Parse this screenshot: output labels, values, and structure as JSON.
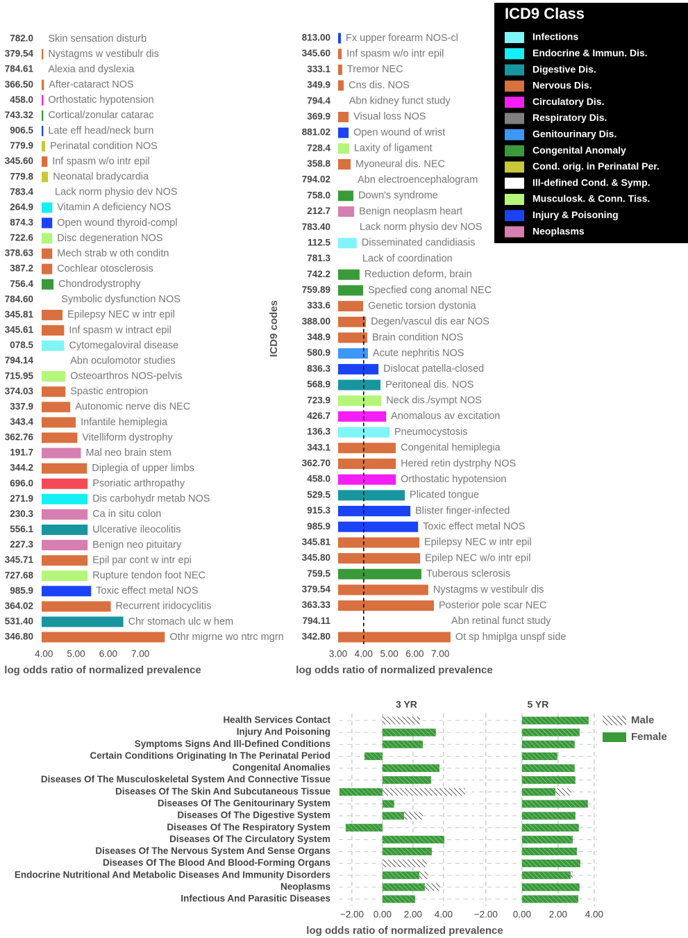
{
  "legend": {
    "title": "ICD9 Class",
    "items": [
      {
        "name": "Infections",
        "color": "#80f5f8"
      },
      {
        "name": "Endocrine & Immun. Dis.",
        "color": "#14f0f5"
      },
      {
        "name": "Digestive Dis.",
        "color": "#17969f"
      },
      {
        "name": "Nervous Dis.",
        "color": "#d9703f"
      },
      {
        "name": "Circulatory Dis.",
        "color": "#f51ef5"
      },
      {
        "name": "Respiratory Dis.",
        "color": "#808080"
      },
      {
        "name": "Genitourinary Dis.",
        "color": "#3d97f5"
      },
      {
        "name": "Congenital Anomaly",
        "color": "#3a9a3a"
      },
      {
        "name": "Cond. orig. in Perinatal Per.",
        "color": "#c8c83a"
      },
      {
        "name": "Ill-defined Cond. & Symp.",
        "color": "#ffffff"
      },
      {
        "name": "Musculosk. & Conn. Tiss.",
        "color": "#b5f57a"
      },
      {
        "name": "Injury & Poisoning",
        "color": "#1a43f5"
      },
      {
        "name": "Neoplasms",
        "color": "#d77fb0"
      }
    ]
  },
  "chart_data": [
    {
      "type": "hbar",
      "xlabel": "log odds ratio of normalized prevalence",
      "codes": [
        "782.0",
        "379.54",
        "784.61",
        "366.50",
        "458.0",
        "743.32",
        "906.5",
        "779.9",
        "345.60",
        "779.8",
        "783.4",
        "264.9",
        "874.3",
        "722.6",
        "378.63",
        "387.2",
        "756.4",
        "784.60",
        "345.81",
        "345.61",
        "078.5",
        "794.14",
        "715.95",
        "374.03",
        "337.9",
        "343.4",
        "362.76",
        "191.7",
        "344.2",
        "696.0",
        "271.9",
        "230.3",
        "556.1",
        "227.3",
        "345.71",
        "727.68",
        "985.9",
        "364.02",
        "531.40",
        "346.80"
      ],
      "categories": [
        "Skin sensation disturb",
        "Nystagms w vestibulr dis",
        "Alexia and dyslexia",
        "After-cataract NOS",
        "Orthostatic hypotension",
        "Cortical/zonular catarac",
        "Late eff head/neck burn",
        "Perinatal condition NOS",
        "Inf spasm w/o intr epil",
        "Neonatal bradycardia",
        "Lack norm physio dev NOS",
        "Vitamin A deficiency NOS",
        "Open wound thyroid-compl",
        "Disc degeneration NOS",
        "Mech strab w oth conditn",
        "Cochlear otosclerosis",
        "Chondrodystrophy",
        "Symbolic dysfunction NOS",
        "Epilepsy NEC w intr epil",
        "Inf spasm w intract epil",
        "Cytomegaloviral disease",
        "Abn oculomotor studies",
        "Osteoarthros NOS-pelvis",
        "Spastic entropion",
        "Autonomic nerve dis NEC",
        "Infantile hemiplegia",
        "Vitelliform dystrophy",
        "Mal neo brain stem",
        "Diplegia of upper limbs",
        "Psoriatic arthropathy",
        "Dis carbohydr metab NOS",
        "Ca in situ colon",
        "Ulcerative ileocolitis",
        "Benign neo pituitary",
        "Epil par cont w intr epi",
        "Rupture tendon foot NEC",
        "Toxic effect metal NOS",
        "Recurrent iridocyclitis",
        "Chr stomach ulc w hem",
        "Othr migrne wo ntrc mgrn"
      ],
      "values": [
        3.98,
        3.98,
        3.98,
        4.0,
        3.98,
        3.98,
        3.98,
        4.04,
        4.11,
        4.13,
        4.19,
        4.26,
        4.26,
        4.26,
        4.26,
        4.26,
        4.3,
        4.39,
        4.58,
        4.63,
        4.63,
        4.67,
        4.67,
        4.67,
        4.82,
        4.99,
        5.04,
        5.15,
        5.34,
        5.36,
        5.36,
        5.36,
        5.36,
        5.36,
        5.36,
        5.36,
        5.47,
        6.08,
        6.47,
        7.76
      ],
      "colors": [
        "#ffffff",
        "#d9703f",
        "#ffffff",
        "#d9703f",
        "#f51ef5",
        "#3a9a3a",
        "#1a43f5",
        "#c8c83a",
        "#d9703f",
        "#c8c83a",
        "#ffffff",
        "#14f0f5",
        "#1a43f5",
        "#b5f57a",
        "#d9703f",
        "#d9703f",
        "#3a9a3a",
        "#ffffff",
        "#d9703f",
        "#d9703f",
        "#80f5f8",
        "#ffffff",
        "#b5f57a",
        "#d9703f",
        "#d9703f",
        "#d9703f",
        "#d9703f",
        "#d77fb0",
        "#d9703f",
        "#f54a55",
        "#14f0f5",
        "#d77fb0",
        "#17969f",
        "#d77fb0",
        "#d9703f",
        "#b5f57a",
        "#1a43f5",
        "#d9703f",
        "#17969f",
        "#d9703f"
      ],
      "xlim": [
        3.93,
        8.5
      ],
      "xticks": [
        {
          "value": 4,
          "label": "4.00"
        },
        {
          "value": 5,
          "label": "5.00"
        },
        {
          "value": 6,
          "label": "6.00"
        },
        {
          "value": 7,
          "label": "7.00"
        }
      ]
    },
    {
      "type": "hbar",
      "xlabel": "log odds ratio of normalized prevalence",
      "ylabel": "ICD9 codes",
      "reference_line": 4,
      "codes": [
        "813.00",
        "345.60",
        "333.1",
        "349.9",
        "794.4",
        "369.9",
        "881.02",
        "728.4",
        "358.8",
        "794.02",
        "758.0",
        "212.7",
        "783.40",
        "112.5",
        "781.3",
        "742.2",
        "759.89",
        "333.6",
        "388.00",
        "348.9",
        "580.9",
        "836.3",
        "568.9",
        "723.9",
        "426.7",
        "136.3",
        "343.1",
        "362.70",
        "458.0",
        "529.5",
        "915.3",
        "985.9",
        "345.81",
        "345.80",
        "759.5",
        "379.54",
        "363.33",
        "794.11",
        "342.80"
      ],
      "categories": [
        "Fx upper forearm NOS-cl",
        "Inf spasm w/o intr epil",
        "Tremor NEC",
        "Cns dis.  NOS",
        "Abn kidney funct study",
        "Visual loss NOS",
        "Open wound of wrist",
        "Laxity of ligament",
        "Myoneural dis.  NEC",
        "Abn electroencephalogram",
        "Down's syndrome",
        "Benign neoplasm heart",
        "Lack norm physio dev NOS",
        "Disseminated candidiasis",
        "Lack of coordination",
        "Reduction deform, brain",
        "Specfied cong anomal NEC",
        "Genetic torsion dystonia",
        "Degen/vascul dis ear NOS",
        "Brain condition NOS",
        "Acute nephritis NOS",
        "Dislocat patella-closed",
        "Peritoneal dis.  NOS",
        "Neck dis./sympt NOS",
        "Anomalous av excitation",
        "Pneumocystosis",
        "Congenital hemiplegia",
        "Hered retin dystrphy NOS",
        "Orthostatic hypotension",
        "Plicated tongue",
        "Blister finger-infected",
        "Toxic effect metal NOS",
        "Epilepsy NEC w intr epil",
        "Epilep NEC w/o intr epil",
        "Tuberous sclerosis",
        "Nystagms w vestibulr dis",
        "Posterior pole scar NEC",
        "Abn retinal funct study",
        "Ot sp hmiplga unspf side"
      ],
      "values": [
        3.11,
        3.14,
        3.16,
        3.22,
        3.24,
        3.41,
        3.41,
        3.43,
        3.49,
        3.57,
        3.6,
        3.63,
        3.65,
        3.73,
        3.76,
        3.84,
        3.98,
        3.98,
        4.09,
        4.14,
        4.17,
        4.58,
        4.66,
        4.69,
        4.88,
        5.01,
        5.26,
        5.26,
        5.26,
        5.61,
        5.83,
        6.13,
        6.18,
        6.21,
        6.26,
        6.53,
        6.75,
        7.24,
        7.4
      ],
      "colors": [
        "#1a43f5",
        "#d9703f",
        "#d9703f",
        "#d9703f",
        "#ffffff",
        "#d9703f",
        "#1a43f5",
        "#b5f57a",
        "#d9703f",
        "#ffffff",
        "#3a9a3a",
        "#d77fb0",
        "#ffffff",
        "#80f5f8",
        "#ffffff",
        "#3a9a3a",
        "#3a9a3a",
        "#d9703f",
        "#d9703f",
        "#d9703f",
        "#3d97f5",
        "#1a43f5",
        "#17969f",
        "#b5f57a",
        "#f51ef5",
        "#80f5f8",
        "#d9703f",
        "#d9703f",
        "#f51ef5",
        "#17969f",
        "#1a43f5",
        "#1a43f5",
        "#d9703f",
        "#d9703f",
        "#3a9a3a",
        "#d9703f",
        "#d9703f",
        "#ffffff",
        "#d9703f"
      ],
      "xlim": [
        3.0,
        7.5
      ],
      "xticks": [
        {
          "value": 3,
          "label": "3.00"
        },
        {
          "value": 4,
          "label": "4.00"
        },
        {
          "value": 5,
          "label": "5.00"
        },
        {
          "value": 6,
          "label": "6.00"
        },
        {
          "value": 7,
          "label": "7.00"
        }
      ]
    },
    {
      "type": "faceted_hbar",
      "xlabel": "log odds ratio of normalized prevalence",
      "categories": [
        "Health Services Contact",
        "Injury And Poisoning",
        "Symptoms Signs And Ill-Defined Conditions",
        "Certain Conditions Originating In The Perinatal Period",
        "Congenital Anomalies",
        "Diseases Of The Musculoskeletal System And Connective Tissue",
        "Diseases Of The Skin And Subcutaneous Tissue",
        "Diseases Of The Genitourinary System",
        "Diseases Of The Digestive System",
        "Diseases Of The Respiratory System",
        "Diseases Of The Circulatory System",
        "Diseases Of The Nervous System And Sense Organs",
        "Diseases Of The Blood And Blood-Forming Organs",
        "Endocrine Nutritional And Metabolic Diseases And Immunity Disorders",
        "Neoplasms",
        "Infectious And Parasitic Diseases"
      ],
      "series_styles": [
        {
          "name": "Male",
          "color": "#000000",
          "pattern": "hatch"
        },
        {
          "name": "Female",
          "color": "#3a9a3a"
        }
      ],
      "facets": [
        {
          "name": "3 YR",
          "xlim": [
            -2.86,
            6.0
          ],
          "xticks": [
            {
              "value": -2,
              "label": "−2.00"
            },
            {
              "value": 0,
              "label": "0.00"
            },
            {
              "value": 2,
              "label": "2.00"
            },
            {
              "value": 4,
              "label": "4.00"
            }
          ],
          "series": [
            {
              "name": "Male",
              "values": [
                2.45,
                2.7,
                2.5,
                -0.8,
                1.9,
                2.8,
                5.41,
                0.6,
                2.64,
                -1.36,
                3.0,
                2.9,
                2.9,
                3.0,
                3.77,
                1.8
              ]
            },
            {
              "name": "Female",
              "values": [
                0,
                3.5,
                2.64,
                -1.18,
                3.73,
                3.18,
                -2.82,
                0.77,
                1.41,
                -2.41,
                4.05,
                3.23,
                0,
                2.41,
                2.77,
                2.14
              ]
            }
          ]
        },
        {
          "name": "5 YR",
          "xlim": [
            -2.38,
            4.15
          ],
          "xticks": [
            {
              "value": -2,
              "label": "−2.00"
            },
            {
              "value": 0,
              "label": "0.00"
            },
            {
              "value": 2,
              "label": "2.00"
            },
            {
              "value": 4,
              "label": "4.00"
            }
          ],
          "series": [
            {
              "name": "Male",
              "values": [
                3.5,
                3.0,
                2.7,
                1.5,
                2.8,
                2.7,
                2.73,
                3.4,
                2.8,
                3.1,
                2.6,
                2.9,
                3.1,
                2.8,
                3.1,
                3.0
              ]
            },
            {
              "name": "Female",
              "values": [
                3.69,
                3.19,
                2.92,
                1.96,
                2.92,
                2.96,
                1.85,
                3.65,
                2.96,
                3.15,
                2.81,
                3.04,
                3.23,
                2.69,
                3.19,
                3.12
              ]
            }
          ]
        }
      ]
    }
  ]
}
